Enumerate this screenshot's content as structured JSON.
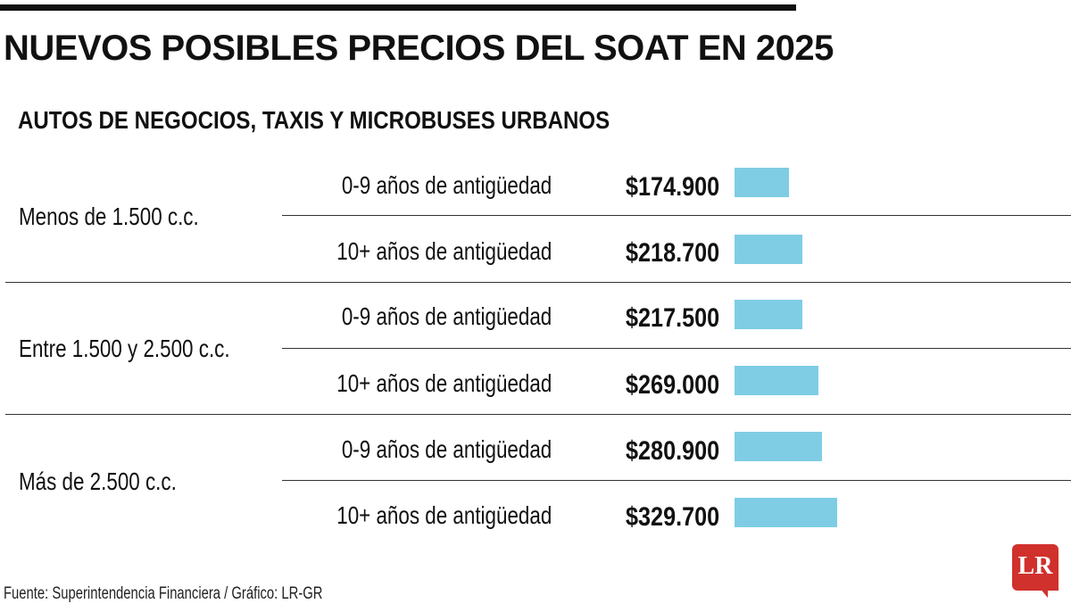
{
  "title": "NUEVOS POSIBLES PRECIOS DEL SOAT EN 2025",
  "subtitle": "AUTOS DE NEGOCIOS, TAXIS Y MICROBUSES URBANOS",
  "source": "Fuente: Superintendencia Financiera / Gráfico: LR-GR",
  "logo": {
    "text": "LR",
    "color": "#d0312d"
  },
  "bar_color": "#7ecde5",
  "chart_data": {
    "type": "bar",
    "orientation": "horizontal",
    "title": "NUEVOS POSIBLES PRECIOS DEL SOAT EN 2025",
    "subtitle": "AUTOS DE NEGOCIOS, TAXIS Y MICROBUSES URBANOS",
    "xmax": 329700,
    "groups": [
      {
        "label": "Menos de 1.500 c.c.",
        "rows": [
          {
            "category": "0-9 años de antigüedad",
            "value": 174900,
            "value_label": "$174.900"
          },
          {
            "category": "10+ años de antigüedad",
            "value": 218700,
            "value_label": "$218.700"
          }
        ]
      },
      {
        "label": "Entre 1.500 y 2.500 c.c.",
        "rows": [
          {
            "category": "0-9 años de antigüedad",
            "value": 217500,
            "value_label": "$217.500"
          },
          {
            "category": "10+ años de antigüedad",
            "value": 269000,
            "value_label": "$269.000"
          }
        ]
      },
      {
        "label": "Más de 2.500 c.c.",
        "rows": [
          {
            "category": "0-9 años de antigüedad",
            "value": 280900,
            "value_label": "$280.900"
          },
          {
            "category": "10+ años de antigüedad",
            "value": 329700,
            "value_label": "$329.700"
          }
        ]
      }
    ]
  }
}
